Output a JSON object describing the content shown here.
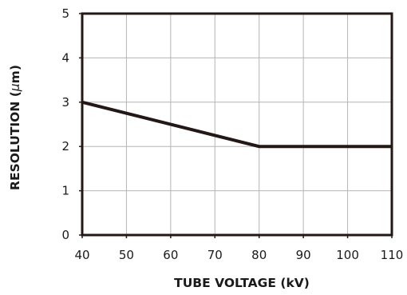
{
  "chart_data": {
    "type": "line",
    "title": "",
    "xlabel": "TUBE VOLTAGE (kV)",
    "ylabel_prefix": "RESOLUTION (",
    "ylabel_unit": "μ",
    "ylabel_suffix": "m)",
    "xlim": [
      40,
      110
    ],
    "ylim": [
      0,
      5
    ],
    "xticks": [
      40,
      50,
      60,
      70,
      80,
      90,
      100,
      110
    ],
    "yticks": [
      0,
      1,
      2,
      3,
      4,
      5
    ],
    "grid": true,
    "series": [
      {
        "x": [
          40,
          80,
          110
        ],
        "y": [
          3,
          2,
          2
        ],
        "color": "#231815"
      }
    ]
  }
}
